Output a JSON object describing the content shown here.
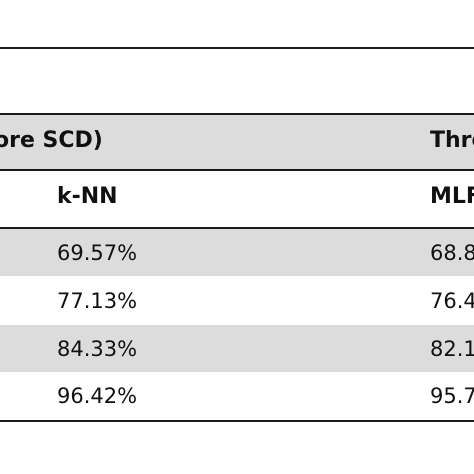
{
  "table": {
    "group_headers": [
      "ore SCD)",
      "Thre"
    ],
    "column_headers": [
      "k-NN",
      "MLF"
    ],
    "rows": [
      [
        "69.57%",
        "68.8"
      ],
      [
        "77.13%",
        "76.4"
      ],
      [
        "84.33%",
        "82.1"
      ],
      [
        "96.42%",
        "95.7"
      ]
    ]
  },
  "colors": {
    "band": "#dcdcdc",
    "rule": "#1a1a1a",
    "text": "#111111"
  }
}
